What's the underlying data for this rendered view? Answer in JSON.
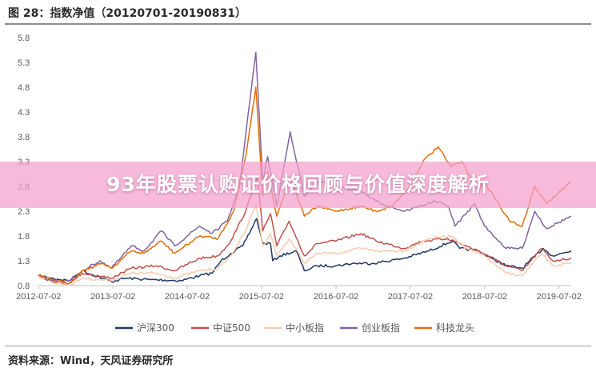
{
  "header": {
    "title": "图 28：指数净值（20120701-20190831）"
  },
  "footer": {
    "source": "资料来源：Wind，天风证券研究所"
  },
  "banner": {
    "text": "93年股票认购证价格回顾与价值深度解析"
  },
  "colors": {
    "hs300": "#1f3864",
    "zz500": "#c0504d",
    "zxb": "#f8cbad",
    "cyb": "#8064a2",
    "kjlt": "#e36c09"
  },
  "chart_data": {
    "type": "line",
    "x_ticks": [
      "2012-07-02",
      "2013-07-02",
      "2014-07-02",
      "2015-07-02",
      "2016-07-02",
      "2017-07-02",
      "2018-07-02",
      "2019-07-02"
    ],
    "y_ticks": [
      "0.8",
      "1.3",
      "1.8",
      "2.3",
      "2.8",
      "3.3",
      "3.8",
      "4.3",
      "4.8",
      "5.3",
      "5.8"
    ],
    "ylim": [
      0.8,
      5.8
    ],
    "xlim": [
      "2012-07-01",
      "2019-08-31"
    ],
    "grid": false,
    "legend_position": "bottom",
    "series": [
      {
        "name": "沪深300",
        "color_key": "hs300",
        "points": [
          [
            "2012-07-01",
            1.0
          ],
          [
            "2012-09-01",
            0.95
          ],
          [
            "2012-12-01",
            0.9
          ],
          [
            "2013-02-01",
            1.1
          ],
          [
            "2013-06-25",
            0.88
          ],
          [
            "2013-09-01",
            0.95
          ],
          [
            "2014-01-01",
            0.92
          ],
          [
            "2014-06-01",
            0.9
          ],
          [
            "2014-09-01",
            1.0
          ],
          [
            "2014-11-01",
            1.05
          ],
          [
            "2014-12-15",
            1.3
          ],
          [
            "2015-02-01",
            1.45
          ],
          [
            "2015-04-01",
            1.6
          ],
          [
            "2015-06-08",
            2.15
          ],
          [
            "2015-07-08",
            1.65
          ],
          [
            "2015-08-15",
            1.65
          ],
          [
            "2015-08-26",
            1.3
          ],
          [
            "2015-10-01",
            1.4
          ],
          [
            "2015-12-20",
            1.5
          ],
          [
            "2016-01-28",
            1.1
          ],
          [
            "2016-04-01",
            1.2
          ],
          [
            "2016-07-01",
            1.2
          ],
          [
            "2016-10-01",
            1.25
          ],
          [
            "2017-01-01",
            1.25
          ],
          [
            "2017-06-01",
            1.35
          ],
          [
            "2017-10-01",
            1.5
          ],
          [
            "2018-01-25",
            1.7
          ],
          [
            "2018-03-01",
            1.55
          ],
          [
            "2018-06-01",
            1.5
          ],
          [
            "2018-10-15",
            1.2
          ],
          [
            "2019-01-03",
            1.15
          ],
          [
            "2019-04-15",
            1.55
          ],
          [
            "2019-06-01",
            1.4
          ],
          [
            "2019-08-31",
            1.5
          ]
        ]
      },
      {
        "name": "中证500",
        "color_key": "zz500",
        "points": [
          [
            "2012-07-01",
            1.0
          ],
          [
            "2012-09-01",
            0.9
          ],
          [
            "2012-12-01",
            0.85
          ],
          [
            "2013-02-01",
            1.05
          ],
          [
            "2013-06-25",
            0.95
          ],
          [
            "2013-10-01",
            1.15
          ],
          [
            "2014-02-01",
            1.2
          ],
          [
            "2014-05-01",
            1.1
          ],
          [
            "2014-09-01",
            1.35
          ],
          [
            "2014-12-01",
            1.4
          ],
          [
            "2015-02-01",
            1.7
          ],
          [
            "2015-04-15",
            2.3
          ],
          [
            "2015-06-12",
            3.0
          ],
          [
            "2015-07-08",
            1.9
          ],
          [
            "2015-08-15",
            2.25
          ],
          [
            "2015-09-15",
            1.6
          ],
          [
            "2015-11-15",
            2.1
          ],
          [
            "2016-01-28",
            1.4
          ],
          [
            "2016-04-01",
            1.65
          ],
          [
            "2016-07-01",
            1.7
          ],
          [
            "2016-11-01",
            1.85
          ],
          [
            "2017-01-15",
            1.7
          ],
          [
            "2017-06-01",
            1.55
          ],
          [
            "2017-09-01",
            1.7
          ],
          [
            "2018-01-01",
            1.75
          ],
          [
            "2018-03-01",
            1.65
          ],
          [
            "2018-06-01",
            1.5
          ],
          [
            "2018-10-15",
            1.2
          ],
          [
            "2019-01-03",
            1.1
          ],
          [
            "2019-04-08",
            1.55
          ],
          [
            "2019-06-01",
            1.3
          ],
          [
            "2019-08-31",
            1.35
          ]
        ]
      },
      {
        "name": "中小板指",
        "color_key": "zxb",
        "points": [
          [
            "2012-07-01",
            1.0
          ],
          [
            "2012-09-01",
            0.88
          ],
          [
            "2012-12-01",
            0.8
          ],
          [
            "2013-02-01",
            0.95
          ],
          [
            "2013-06-25",
            0.9
          ],
          [
            "2013-10-01",
            1.05
          ],
          [
            "2014-02-01",
            1.05
          ],
          [
            "2014-05-01",
            0.95
          ],
          [
            "2014-09-01",
            1.1
          ],
          [
            "2014-12-01",
            1.15
          ],
          [
            "2015-02-01",
            1.4
          ],
          [
            "2015-04-15",
            1.9
          ],
          [
            "2015-06-05",
            2.45
          ],
          [
            "2015-07-08",
            1.6
          ],
          [
            "2015-08-15",
            1.85
          ],
          [
            "2015-09-15",
            1.4
          ],
          [
            "2015-11-15",
            1.75
          ],
          [
            "2016-01-28",
            1.25
          ],
          [
            "2016-04-01",
            1.45
          ],
          [
            "2016-07-01",
            1.45
          ],
          [
            "2016-11-01",
            1.55
          ],
          [
            "2017-01-15",
            1.5
          ],
          [
            "2017-06-01",
            1.5
          ],
          [
            "2017-10-01",
            1.75
          ],
          [
            "2018-01-25",
            1.8
          ],
          [
            "2018-04-01",
            1.55
          ],
          [
            "2018-07-01",
            1.4
          ],
          [
            "2018-10-15",
            1.05
          ],
          [
            "2019-01-03",
            1.0
          ],
          [
            "2019-04-08",
            1.45
          ],
          [
            "2019-06-01",
            1.2
          ],
          [
            "2019-08-31",
            1.25
          ]
        ]
      },
      {
        "name": "创业板指",
        "color_key": "cyb",
        "points": [
          [
            "2012-07-01",
            1.0
          ],
          [
            "2012-09-01",
            0.9
          ],
          [
            "2012-12-01",
            0.9
          ],
          [
            "2013-02-01",
            1.1
          ],
          [
            "2013-05-01",
            1.3
          ],
          [
            "2013-06-25",
            1.15
          ],
          [
            "2013-10-01",
            1.6
          ],
          [
            "2013-12-01",
            1.5
          ],
          [
            "2014-02-25",
            1.9
          ],
          [
            "2014-05-01",
            1.6
          ],
          [
            "2014-09-01",
            2.0
          ],
          [
            "2014-11-01",
            1.85
          ],
          [
            "2015-01-15",
            2.1
          ],
          [
            "2015-03-15",
            2.8
          ],
          [
            "2015-06-04",
            5.5
          ],
          [
            "2015-07-08",
            2.9
          ],
          [
            "2015-08-01",
            3.4
          ],
          [
            "2015-09-15",
            2.4
          ],
          [
            "2015-11-20",
            3.9
          ],
          [
            "2016-01-28",
            2.6
          ],
          [
            "2016-04-01",
            2.9
          ],
          [
            "2016-07-01",
            2.8
          ],
          [
            "2016-11-01",
            2.7
          ],
          [
            "2017-01-15",
            2.5
          ],
          [
            "2017-06-01",
            2.3
          ],
          [
            "2017-11-01",
            2.5
          ],
          [
            "2018-01-05",
            2.4
          ],
          [
            "2018-02-06",
            2.0
          ],
          [
            "2018-05-15",
            2.45
          ],
          [
            "2018-07-01",
            2.0
          ],
          [
            "2018-10-15",
            1.55
          ],
          [
            "2019-01-03",
            1.55
          ],
          [
            "2019-03-05",
            2.3
          ],
          [
            "2019-05-01",
            1.95
          ],
          [
            "2019-08-31",
            2.2
          ]
        ]
      },
      {
        "name": "科技龙头",
        "color_key": "kjlt",
        "points": [
          [
            "2012-07-01",
            1.0
          ],
          [
            "2012-09-01",
            0.92
          ],
          [
            "2012-12-01",
            0.85
          ],
          [
            "2013-02-01",
            1.1
          ],
          [
            "2013-05-15",
            1.25
          ],
          [
            "2013-06-25",
            1.15
          ],
          [
            "2013-10-01",
            1.5
          ],
          [
            "2013-12-01",
            1.45
          ],
          [
            "2014-02-25",
            1.7
          ],
          [
            "2014-05-01",
            1.45
          ],
          [
            "2014-09-01",
            1.8
          ],
          [
            "2014-12-01",
            1.75
          ],
          [
            "2015-02-15",
            2.3
          ],
          [
            "2015-04-15",
            3.4
          ],
          [
            "2015-06-04",
            4.8
          ],
          [
            "2015-07-08",
            2.6
          ],
          [
            "2015-08-01",
            3.1
          ],
          [
            "2015-09-15",
            2.2
          ],
          [
            "2015-11-20",
            3.0
          ],
          [
            "2016-01-28",
            2.2
          ],
          [
            "2016-04-01",
            2.4
          ],
          [
            "2016-07-01",
            2.3
          ],
          [
            "2016-11-01",
            2.4
          ],
          [
            "2017-01-15",
            2.3
          ],
          [
            "2017-04-01",
            2.4
          ],
          [
            "2017-07-01",
            2.8
          ],
          [
            "2017-09-01",
            3.3
          ],
          [
            "2017-11-15",
            3.6
          ],
          [
            "2018-01-15",
            3.2
          ],
          [
            "2018-03-12",
            3.3
          ],
          [
            "2018-06-01",
            2.7
          ],
          [
            "2018-07-01",
            2.9
          ],
          [
            "2018-09-15",
            2.4
          ],
          [
            "2018-11-01",
            2.1
          ],
          [
            "2019-01-03",
            2.0
          ],
          [
            "2019-03-05",
            2.8
          ],
          [
            "2019-05-01",
            2.45
          ],
          [
            "2019-08-31",
            2.9
          ]
        ]
      }
    ]
  }
}
